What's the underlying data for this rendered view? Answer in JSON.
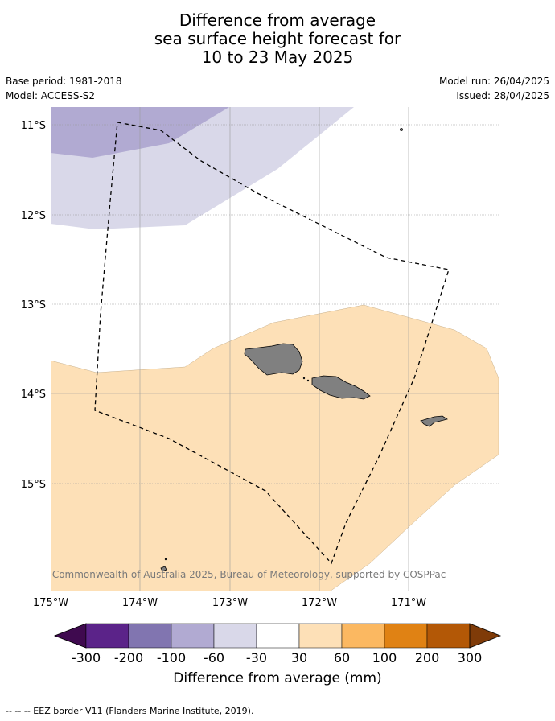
{
  "title": {
    "line1": "Difference from average",
    "line2": "sea surface height forecast for",
    "line3": "10 to 23 May 2025"
  },
  "meta": {
    "base_period": "Base period: 1981-2018",
    "model": "Model: ACCESS-S2",
    "model_run": "Model run: 26/04/2025",
    "issued": "Issued: 28/04/2025"
  },
  "map": {
    "lat_labels": [
      "11°S",
      "12°S",
      "13°S",
      "14°S",
      "15°S"
    ],
    "lon_labels": [
      "175°W",
      "174°W",
      "173°W",
      "172°W",
      "171°W"
    ],
    "copyright": "© Commonwealth of Australia 2025, Bureau of Meteorology, supported by COSPPac",
    "colors": {
      "light_purple": "#d9d8e9",
      "mid_purple": "#b1aad2",
      "light_orange": "#fde0b7",
      "land": "#808080",
      "grid": "#999999"
    }
  },
  "colorbar": {
    "tick_labels": [
      "-300",
      "-200",
      "-100",
      "-60",
      "-30",
      "30",
      "60",
      "100",
      "200",
      "300"
    ],
    "colors": [
      "#3f0a4f",
      "#5b2389",
      "#8175b0",
      "#b1aad2",
      "#d9d8e9",
      "#ffffff",
      "#fde0b7",
      "#fbb861",
      "#e08214",
      "#b35806",
      "#7f3b08"
    ],
    "label": "Difference from average (mm)"
  },
  "footnote": "--  --  -- EEZ border V11 (Flanders Marine Institute, 2019)."
}
